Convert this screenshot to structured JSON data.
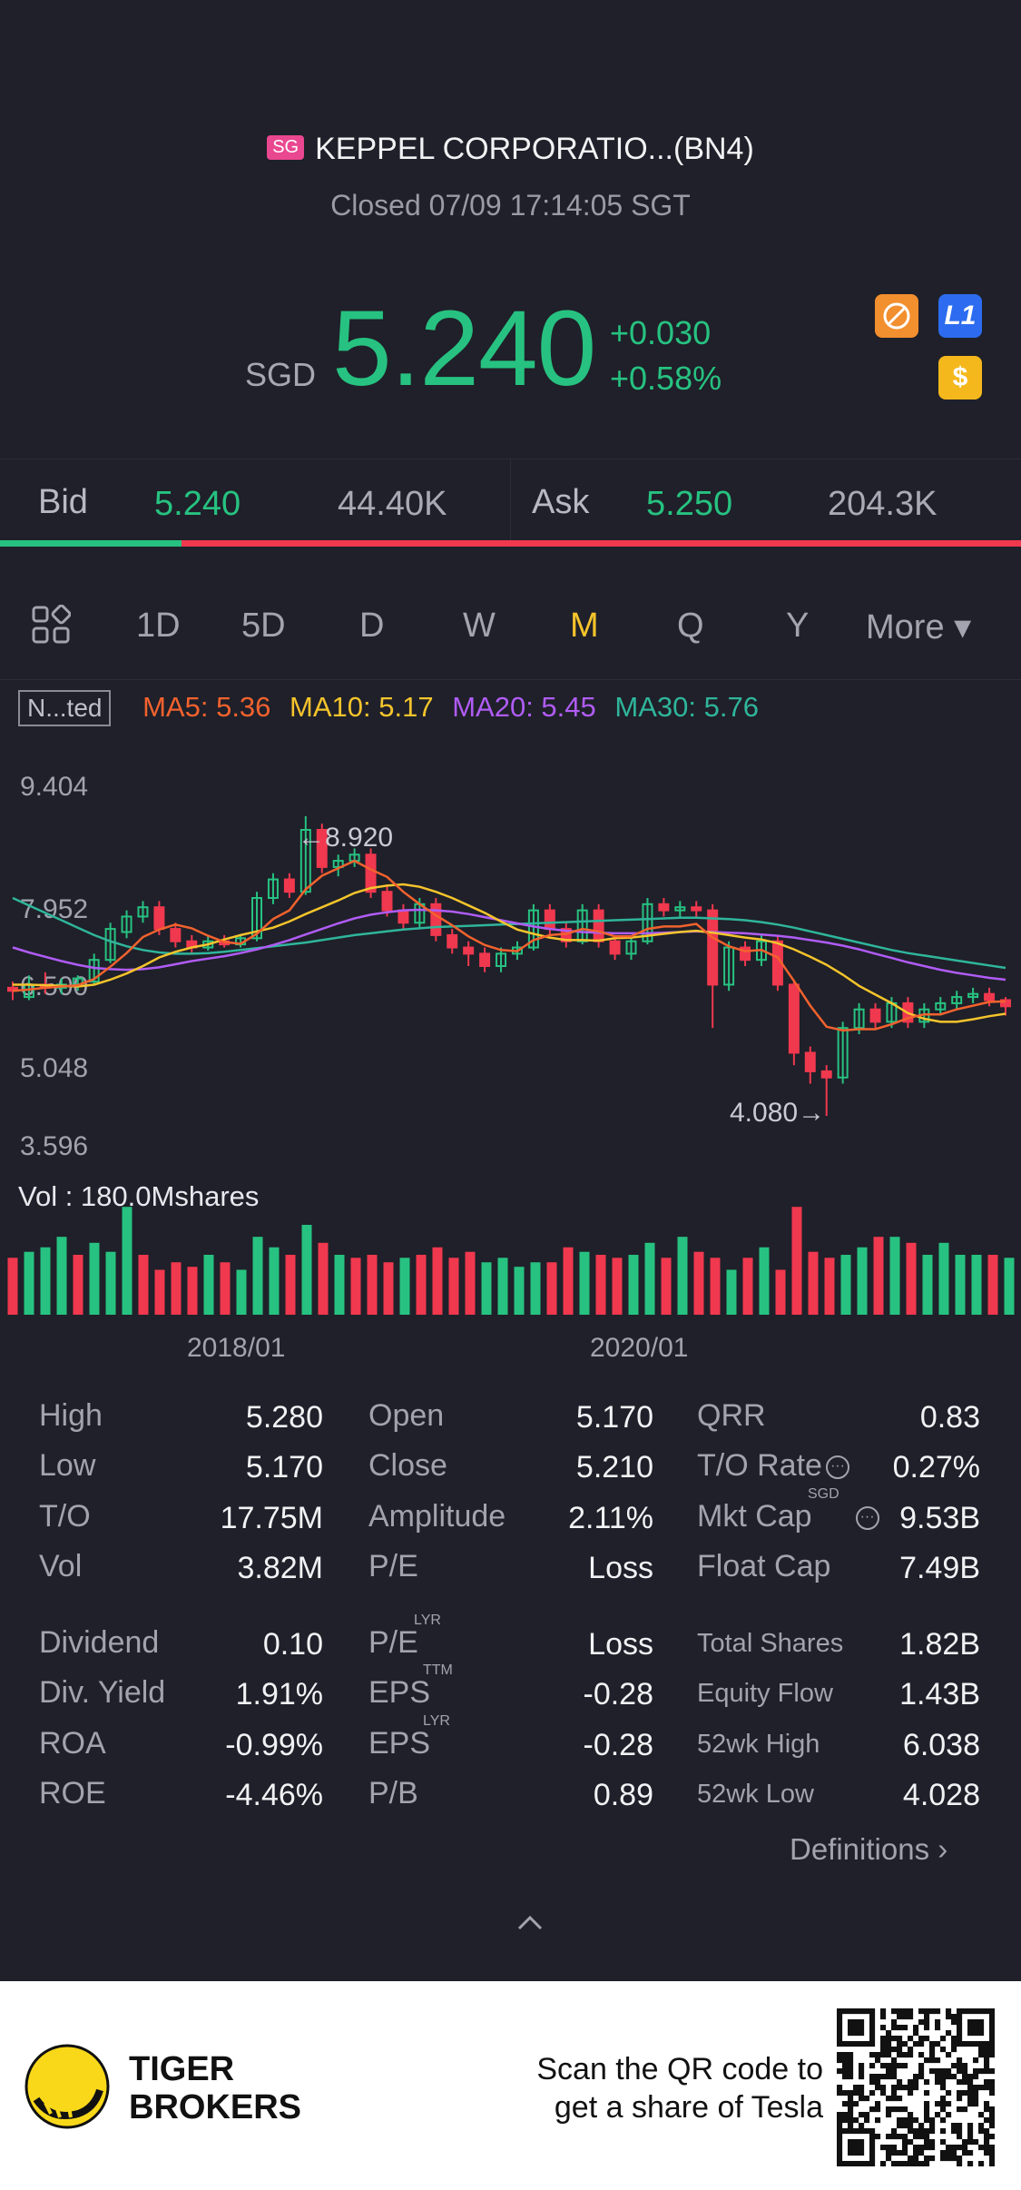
{
  "header": {
    "market_badge": "SG",
    "stock_name": "KEPPEL CORPORATIO...(BN4)",
    "status": "Closed 07/09 17:14:05 SGT",
    "currency": "SGD",
    "price": "5.240",
    "change": "+0.030",
    "change_pct": "+0.58%",
    "icons": [
      "no-shorting-icon",
      "level1-icon",
      "dollar-icon"
    ],
    "icon_l1_text": "L1",
    "icon_dollar_text": "$"
  },
  "bidask": {
    "bid_label": "Bid",
    "bid_price": "5.240",
    "bid_vol": "44.40K",
    "ask_label": "Ask",
    "ask_price": "5.250",
    "ask_vol": "204.3K",
    "bid_ratio": 0.178
  },
  "tabs": {
    "items": [
      "1D",
      "5D",
      "D",
      "W",
      "M",
      "Q",
      "Y",
      "More ▾"
    ],
    "active": "M"
  },
  "indicators": {
    "adjust_label": "N...ted",
    "ma5": "MA5: 5.36",
    "ma10": "MA10: 5.17",
    "ma20": "MA20: 5.45",
    "ma30": "MA30: 5.76"
  },
  "chart_data": {
    "type": "candlestick",
    "y_ticks": [
      "9.404",
      "7.952",
      "6.500",
      "5.048",
      "3.596"
    ],
    "ylim": [
      3.596,
      9.404
    ],
    "max_label": "←8.920",
    "min_label": "4.080→",
    "volume_label": "Vol  : 180.0Mshares",
    "x_ticks": [
      "2018/01",
      "2020/01"
    ],
    "colors": {
      "up": "#27c281",
      "down": "#f0384e",
      "ma5": "#f2622e",
      "ma10": "#f5c42c",
      "ma20": "#b05cf5",
      "ma30": "#2fb59b"
    },
    "candles": [
      {
        "o": 6.15,
        "c": 6.1,
        "h": 6.25,
        "l": 5.95
      },
      {
        "o": 6.0,
        "c": 6.2,
        "h": 6.35,
        "l": 5.95
      },
      {
        "o": 6.2,
        "c": 6.15,
        "h": 6.4,
        "l": 6.05
      },
      {
        "o": 6.15,
        "c": 6.2,
        "h": 6.3,
        "l": 6.05
      },
      {
        "o": 6.2,
        "c": 6.3,
        "h": 6.35,
        "l": 6.1
      },
      {
        "o": 6.25,
        "c": 6.6,
        "h": 6.7,
        "l": 6.2
      },
      {
        "o": 6.6,
        "c": 7.1,
        "h": 7.2,
        "l": 6.55
      },
      {
        "o": 7.05,
        "c": 7.3,
        "h": 7.4,
        "l": 6.95
      },
      {
        "o": 7.3,
        "c": 7.45,
        "h": 7.55,
        "l": 7.2
      },
      {
        "o": 7.45,
        "c": 7.1,
        "h": 7.55,
        "l": 7.0
      },
      {
        "o": 7.1,
        "c": 6.9,
        "h": 7.2,
        "l": 6.8
      },
      {
        "o": 6.9,
        "c": 6.8,
        "h": 7.0,
        "l": 6.7
      },
      {
        "o": 6.8,
        "c": 6.9,
        "h": 7.0,
        "l": 6.75
      },
      {
        "o": 6.9,
        "c": 6.85,
        "h": 7.0,
        "l": 6.8
      },
      {
        "o": 6.85,
        "c": 6.95,
        "h": 7.0,
        "l": 6.8
      },
      {
        "o": 6.95,
        "c": 7.6,
        "h": 7.7,
        "l": 6.9
      },
      {
        "o": 7.6,
        "c": 7.9,
        "h": 8.0,
        "l": 7.5
      },
      {
        "o": 7.9,
        "c": 7.7,
        "h": 8.0,
        "l": 7.6
      },
      {
        "o": 7.7,
        "c": 8.7,
        "h": 8.92,
        "l": 7.65
      },
      {
        "o": 8.7,
        "c": 8.1,
        "h": 8.8,
        "l": 8.0
      },
      {
        "o": 8.1,
        "c": 8.2,
        "h": 8.3,
        "l": 7.95
      },
      {
        "o": 8.2,
        "c": 8.3,
        "h": 8.4,
        "l": 8.1
      },
      {
        "o": 8.3,
        "c": 7.7,
        "h": 8.4,
        "l": 7.6
      },
      {
        "o": 7.7,
        "c": 7.4,
        "h": 7.8,
        "l": 7.3
      },
      {
        "o": 7.4,
        "c": 7.2,
        "h": 7.5,
        "l": 7.1
      },
      {
        "o": 7.2,
        "c": 7.5,
        "h": 7.6,
        "l": 7.1
      },
      {
        "o": 7.5,
        "c": 7.0,
        "h": 7.6,
        "l": 6.9
      },
      {
        "o": 7.0,
        "c": 6.8,
        "h": 7.1,
        "l": 6.7
      },
      {
        "o": 6.8,
        "c": 6.7,
        "h": 6.9,
        "l": 6.5
      },
      {
        "o": 6.7,
        "c": 6.5,
        "h": 6.8,
        "l": 6.4
      },
      {
        "o": 6.5,
        "c": 6.7,
        "h": 6.8,
        "l": 6.4
      },
      {
        "o": 6.7,
        "c": 6.8,
        "h": 6.9,
        "l": 6.6
      },
      {
        "o": 6.8,
        "c": 7.4,
        "h": 7.5,
        "l": 6.75
      },
      {
        "o": 7.4,
        "c": 7.1,
        "h": 7.5,
        "l": 7.0
      },
      {
        "o": 7.1,
        "c": 6.9,
        "h": 7.2,
        "l": 6.8
      },
      {
        "o": 6.9,
        "c": 7.4,
        "h": 7.5,
        "l": 6.85
      },
      {
        "o": 7.4,
        "c": 6.9,
        "h": 7.5,
        "l": 6.8
      },
      {
        "o": 6.9,
        "c": 6.7,
        "h": 7.0,
        "l": 6.6
      },
      {
        "o": 6.7,
        "c": 6.9,
        "h": 7.0,
        "l": 6.6
      },
      {
        "o": 6.9,
        "c": 7.5,
        "h": 7.6,
        "l": 6.85
      },
      {
        "o": 7.5,
        "c": 7.4,
        "h": 7.6,
        "l": 7.3
      },
      {
        "o": 7.4,
        "c": 7.45,
        "h": 7.55,
        "l": 7.3
      },
      {
        "o": 7.45,
        "c": 7.4,
        "h": 7.55,
        "l": 7.3
      },
      {
        "o": 7.4,
        "c": 6.2,
        "h": 7.5,
        "l": 5.5
      },
      {
        "o": 6.2,
        "c": 6.8,
        "h": 6.9,
        "l": 6.1
      },
      {
        "o": 6.8,
        "c": 6.6,
        "h": 6.9,
        "l": 6.5
      },
      {
        "o": 6.6,
        "c": 6.9,
        "h": 7.0,
        "l": 6.5
      },
      {
        "o": 6.9,
        "c": 6.2,
        "h": 7.0,
        "l": 6.1
      },
      {
        "o": 6.2,
        "c": 5.1,
        "h": 6.25,
        "l": 4.9
      },
      {
        "o": 5.1,
        "c": 4.8,
        "h": 5.2,
        "l": 4.6
      },
      {
        "o": 4.8,
        "c": 4.7,
        "h": 4.9,
        "l": 4.08
      },
      {
        "o": 4.7,
        "c": 5.5,
        "h": 5.6,
        "l": 4.6
      },
      {
        "o": 5.5,
        "c": 5.8,
        "h": 5.9,
        "l": 5.4
      },
      {
        "o": 5.8,
        "c": 5.6,
        "h": 5.9,
        "l": 5.5
      },
      {
        "o": 5.6,
        "c": 5.9,
        "h": 6.0,
        "l": 5.5
      },
      {
        "o": 5.9,
        "c": 5.6,
        "h": 6.0,
        "l": 5.5
      },
      {
        "o": 5.6,
        "c": 5.8,
        "h": 5.9,
        "l": 5.5
      },
      {
        "o": 5.8,
        "c": 5.9,
        "h": 6.0,
        "l": 5.7
      },
      {
        "o": 5.9,
        "c": 6.0,
        "h": 6.1,
        "l": 5.8
      },
      {
        "o": 6.0,
        "c": 6.05,
        "h": 6.15,
        "l": 5.9
      },
      {
        "o": 6.05,
        "c": 5.95,
        "h": 6.15,
        "l": 5.85
      },
      {
        "o": 5.95,
        "c": 5.85,
        "h": 6.0,
        "l": 5.7
      }
    ],
    "ma5": [
      6.1,
      6.12,
      6.15,
      6.17,
      6.19,
      6.29,
      6.49,
      6.71,
      6.97,
      7.09,
      7.17,
      7.11,
      6.99,
      6.89,
      6.86,
      7.02,
      7.26,
      7.4,
      7.74,
      7.96,
      8.08,
      8.2,
      8.06,
      7.94,
      7.7,
      7.5,
      7.32,
      7.16,
      6.98,
      6.84,
      6.76,
      6.74,
      6.92,
      7.0,
      7.02,
      7.1,
      7.06,
      6.98,
      6.98,
      7.1,
      7.14,
      7.14,
      7.18,
      6.96,
      6.82,
      6.74,
      6.76,
      6.64,
      6.26,
      5.86,
      5.52,
      5.46,
      5.48,
      5.48,
      5.56,
      5.66,
      5.72,
      5.72,
      5.8,
      5.86,
      5.92,
      5.93
    ],
    "ma10": [
      6.2,
      6.2,
      6.19,
      6.18,
      6.17,
      6.2,
      6.28,
      6.38,
      6.5,
      6.64,
      6.73,
      6.8,
      6.85,
      6.93,
      7.0,
      7.06,
      7.12,
      7.22,
      7.34,
      7.45,
      7.56,
      7.68,
      7.76,
      7.8,
      7.82,
      7.78,
      7.7,
      7.6,
      7.48,
      7.36,
      7.22,
      7.09,
      7.02,
      6.96,
      6.92,
      6.92,
      6.91,
      6.95,
      6.96,
      6.99,
      7.02,
      7.05,
      7.07,
      7.04,
      7.0,
      6.96,
      6.93,
      6.87,
      6.77,
      6.65,
      6.52,
      6.36,
      6.18,
      6.04,
      5.9,
      5.74,
      5.65,
      5.6,
      5.6,
      5.64,
      5.69,
      5.73
    ],
    "ma20": [
      6.8,
      6.72,
      6.65,
      6.58,
      6.52,
      6.47,
      6.45,
      6.44,
      6.45,
      6.48,
      6.53,
      6.58,
      6.62,
      6.66,
      6.71,
      6.77,
      6.84,
      6.92,
      7.01,
      7.1,
      7.19,
      7.27,
      7.33,
      7.37,
      7.4,
      7.41,
      7.4,
      7.38,
      7.34,
      7.29,
      7.24,
      7.19,
      7.14,
      7.1,
      7.07,
      7.05,
      7.04,
      7.03,
      7.03,
      7.03,
      7.04,
      7.05,
      7.06,
      7.05,
      7.04,
      7.03,
      7.01,
      6.99,
      6.96,
      6.92,
      6.88,
      6.83,
      6.77,
      6.7,
      6.63,
      6.56,
      6.5,
      6.44,
      6.39,
      6.35,
      6.31,
      6.28
    ],
    "ma30": [
      7.6,
      7.48,
      7.36,
      7.24,
      7.12,
      7.0,
      6.9,
      6.82,
      6.76,
      6.72,
      6.7,
      6.7,
      6.71,
      6.73,
      6.76,
      6.79,
      6.82,
      6.85,
      6.88,
      6.92,
      6.96,
      7.0,
      7.03,
      7.06,
      7.09,
      7.11,
      7.13,
      7.14,
      7.15,
      7.16,
      7.17,
      7.18,
      7.19,
      7.2,
      7.21,
      7.22,
      7.23,
      7.24,
      7.25,
      7.26,
      7.27,
      7.28,
      7.28,
      7.27,
      7.26,
      7.24,
      7.21,
      7.17,
      7.12,
      7.06,
      7.0,
      6.94,
      6.88,
      6.82,
      6.76,
      6.71,
      6.67,
      6.63,
      6.59,
      6.55,
      6.51,
      6.47
    ],
    "volume": [
      0.38,
      0.42,
      0.45,
      0.52,
      0.4,
      0.48,
      0.42,
      0.72,
      0.4,
      0.3,
      0.35,
      0.32,
      0.4,
      0.35,
      0.3,
      0.52,
      0.45,
      0.4,
      0.6,
      0.48,
      0.4,
      0.38,
      0.4,
      0.35,
      0.38,
      0.4,
      0.45,
      0.38,
      0.42,
      0.35,
      0.38,
      0.32,
      0.35,
      0.35,
      0.45,
      0.42,
      0.4,
      0.38,
      0.4,
      0.48,
      0.38,
      0.52,
      0.42,
      0.38,
      0.3,
      0.38,
      0.45,
      0.3,
      0.72,
      0.42,
      0.38,
      0.4,
      0.45,
      0.52,
      0.52,
      0.48,
      0.4,
      0.48,
      0.4,
      0.4,
      0.4,
      0.38
    ],
    "volume_up": [
      false,
      true,
      true,
      true,
      false,
      true,
      true,
      true,
      false,
      false,
      false,
      false,
      true,
      false,
      true,
      true,
      true,
      false,
      true,
      false,
      true,
      false,
      false,
      false,
      true,
      false,
      false,
      false,
      false,
      true,
      true,
      true,
      true,
      false,
      false,
      true,
      false,
      false,
      true,
      true,
      false,
      true,
      false,
      false,
      true,
      false,
      true,
      false,
      false,
      false,
      false,
      true,
      true,
      false,
      true,
      false,
      true,
      true,
      true,
      true,
      false,
      true
    ]
  },
  "stats": {
    "col1": [
      {
        "label": "High",
        "value": "5.280"
      },
      {
        "label": "Low",
        "value": "5.170"
      },
      {
        "label": "T/O",
        "value": "17.75M"
      },
      {
        "label": "Vol",
        "value": "3.82M"
      },
      {
        "label": "Dividend",
        "value": "0.10"
      },
      {
        "label": "Div. Yield",
        "value": "1.91%"
      },
      {
        "label": "ROA",
        "value": "-0.99%"
      },
      {
        "label": "ROE",
        "value": "-4.46%"
      }
    ],
    "col2": [
      {
        "label": "Open",
        "value": "5.170"
      },
      {
        "label": "Close",
        "value": "5.210"
      },
      {
        "label": "Amplitude",
        "value": "2.11%"
      },
      {
        "label": "P/E",
        "value": "Loss"
      },
      {
        "label": "P/E",
        "sup": "LYR",
        "value": "Loss"
      },
      {
        "label": "EPS",
        "sup": "TTM",
        "value": "-0.28"
      },
      {
        "label": "EPS",
        "sup": "LYR",
        "value": "-0.28"
      },
      {
        "label": "P/B",
        "value": "0.89"
      }
    ],
    "col3": [
      {
        "label": "QRR",
        "value": "0.83"
      },
      {
        "label": "T/O Rate",
        "value": "0.27%"
      },
      {
        "label": "Mkt Cap",
        "sup": "SGD",
        "value": "9.53B"
      },
      {
        "label": "Float Cap",
        "value": "7.49B"
      },
      {
        "label": "Total Shares",
        "value": "1.82B"
      },
      {
        "label": "Equity Flow",
        "value": "1.43B"
      },
      {
        "label": "52wk High",
        "value": "6.038"
      },
      {
        "label": "52wk Low",
        "value": "4.028"
      }
    ],
    "definitions": "Definitions ›"
  },
  "footer": {
    "brand_line1": "TIGER",
    "brand_line2": "BROKERS",
    "scan_line1": "Scan the QR code to",
    "scan_line2": "get a share of Tesla"
  }
}
